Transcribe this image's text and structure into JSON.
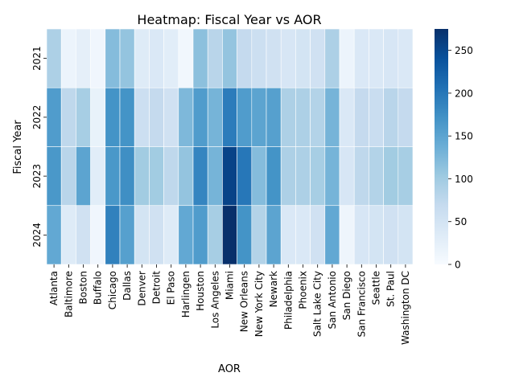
{
  "chart_data": {
    "type": "heatmap",
    "title": "Heatmap: Fiscal Year vs AOR",
    "xlabel": "AOR",
    "ylabel": "Fiscal Year",
    "x_categories": [
      "Atlanta",
      "Baltimore",
      "Boston",
      "Buffalo",
      "Chicago",
      "Dallas",
      "Denver",
      "Detroit",
      "El Paso",
      "Harlingen",
      "Houston",
      "Los Angeles",
      "Miami",
      "New Orleans",
      "New York City",
      "Newark",
      "Philadelphia",
      "Phoenix",
      "Salt Lake City",
      "San Antonio",
      "San Diego",
      "San Francisco",
      "Seattle",
      "St. Paul",
      "Washington DC"
    ],
    "y_categories": [
      "2021",
      "2022",
      "2023",
      "2024"
    ],
    "values": [
      [
        90,
        15,
        25,
        10,
        120,
        110,
        35,
        40,
        30,
        8,
        115,
        80,
        110,
        70,
        60,
        55,
        45,
        50,
        55,
        90,
        15,
        40,
        40,
        45,
        40
      ],
      [
        160,
        75,
        95,
        20,
        170,
        170,
        60,
        70,
        55,
        125,
        160,
        130,
        195,
        160,
        150,
        155,
        90,
        90,
        85,
        130,
        40,
        70,
        65,
        80,
        70
      ],
      [
        165,
        80,
        150,
        30,
        165,
        175,
        100,
        100,
        75,
        110,
        185,
        130,
        255,
        200,
        120,
        170,
        90,
        90,
        95,
        130,
        45,
        75,
        85,
        100,
        95
      ],
      [
        145,
        35,
        55,
        10,
        190,
        155,
        50,
        55,
        35,
        145,
        160,
        95,
        275,
        170,
        85,
        150,
        40,
        40,
        55,
        145,
        12,
        45,
        50,
        55,
        50
      ]
    ],
    "colorbar": {
      "ticks": [
        0,
        50,
        100,
        150,
        200,
        250
      ],
      "min": 0,
      "max": 275
    },
    "colormap": [
      "#f7fbff",
      "#deebf7",
      "#c6dbef",
      "#9ecae1",
      "#6baed6",
      "#4292c6",
      "#2171b5",
      "#08519c",
      "#08306b"
    ],
    "grid": "white cell borders"
  }
}
